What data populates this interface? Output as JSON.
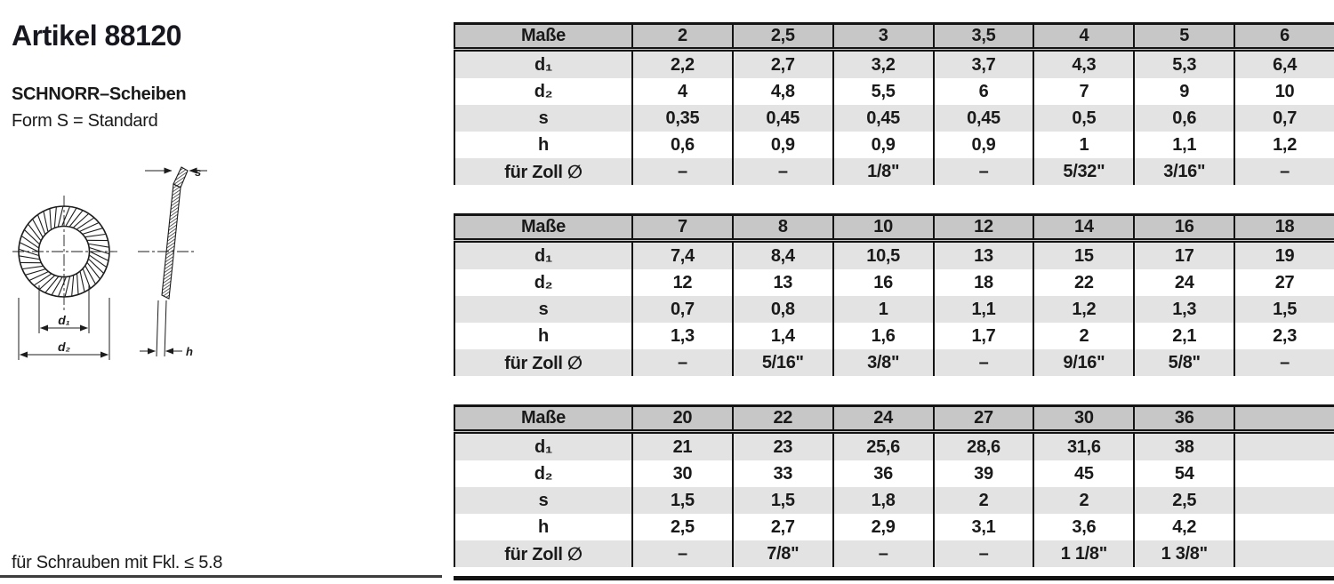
{
  "page": {
    "title": "Artikel 88120",
    "subtitle": "SCHNORR–Scheiben",
    "form_line": "Form S = Standard",
    "footnote": "für Schrauben mit Fkl. ≤ 5.8"
  },
  "diagram": {
    "d1_label": "d₁",
    "d2_label": "d₂",
    "s_label": "s",
    "h_label": "h"
  },
  "tables": [
    {
      "header_label": "Maße",
      "columns": [
        "2",
        "2,5",
        "3",
        "3,5",
        "4",
        "5",
        "6"
      ],
      "rows": [
        {
          "key": "d1",
          "label": "d₁",
          "values": [
            "2,2",
            "2,7",
            "3,2",
            "3,7",
            "4,3",
            "5,3",
            "6,4"
          ]
        },
        {
          "key": "d2",
          "label": "d₂",
          "values": [
            "4",
            "4,8",
            "5,5",
            "6",
            "7",
            "9",
            "10"
          ]
        },
        {
          "key": "s",
          "label": "s",
          "values": [
            "0,35",
            "0,45",
            "0,45",
            "0,45",
            "0,5",
            "0,6",
            "0,7"
          ]
        },
        {
          "key": "h",
          "label": "h",
          "values": [
            "0,6",
            "0,9",
            "0,9",
            "0,9",
            "1",
            "1,1",
            "1,2"
          ]
        },
        {
          "key": "zoll",
          "label": "für Zoll ∅",
          "values": [
            "–",
            "–",
            "1/8\"",
            "–",
            "5/32\"",
            "3/16\"",
            "–"
          ]
        }
      ]
    },
    {
      "header_label": "Maße",
      "columns": [
        "7",
        "8",
        "10",
        "12",
        "14",
        "16",
        "18"
      ],
      "rows": [
        {
          "key": "d1",
          "label": "d₁",
          "values": [
            "7,4",
            "8,4",
            "10,5",
            "13",
            "15",
            "17",
            "19"
          ]
        },
        {
          "key": "d2",
          "label": "d₂",
          "values": [
            "12",
            "13",
            "16",
            "18",
            "22",
            "24",
            "27"
          ]
        },
        {
          "key": "s",
          "label": "s",
          "values": [
            "0,7",
            "0,8",
            "1",
            "1,1",
            "1,2",
            "1,3",
            "1,5"
          ]
        },
        {
          "key": "h",
          "label": "h",
          "values": [
            "1,3",
            "1,4",
            "1,6",
            "1,7",
            "2",
            "2,1",
            "2,3"
          ]
        },
        {
          "key": "zoll",
          "label": "für Zoll ∅",
          "values": [
            "–",
            "5/16\"",
            "3/8\"",
            "–",
            "9/16\"",
            "5/8\"",
            "–"
          ]
        }
      ]
    },
    {
      "header_label": "Maße",
      "columns": [
        "20",
        "22",
        "24",
        "27",
        "30",
        "36",
        ""
      ],
      "rows": [
        {
          "key": "d1",
          "label": "d₁",
          "values": [
            "21",
            "23",
            "25,6",
            "28,6",
            "31,6",
            "38",
            ""
          ]
        },
        {
          "key": "d2",
          "label": "d₂",
          "values": [
            "30",
            "33",
            "36",
            "39",
            "45",
            "54",
            ""
          ]
        },
        {
          "key": "s",
          "label": "s",
          "values": [
            "1,5",
            "1,5",
            "1,8",
            "2",
            "2",
            "2,5",
            ""
          ]
        },
        {
          "key": "h",
          "label": "h",
          "values": [
            "2,5",
            "2,7",
            "2,9",
            "3,1",
            "3,6",
            "4,2",
            ""
          ]
        },
        {
          "key": "zoll",
          "label": "für Zoll ∅",
          "values": [
            "–",
            "7/8\"",
            "–",
            "–",
            "1 1/8\"",
            "1 3/8\"",
            ""
          ]
        }
      ]
    }
  ],
  "colors": {
    "header_bg": "#c7c7c7",
    "stripe_bg": "#e3e3e3",
    "line": "#141414",
    "text": "#1a1a1a"
  }
}
